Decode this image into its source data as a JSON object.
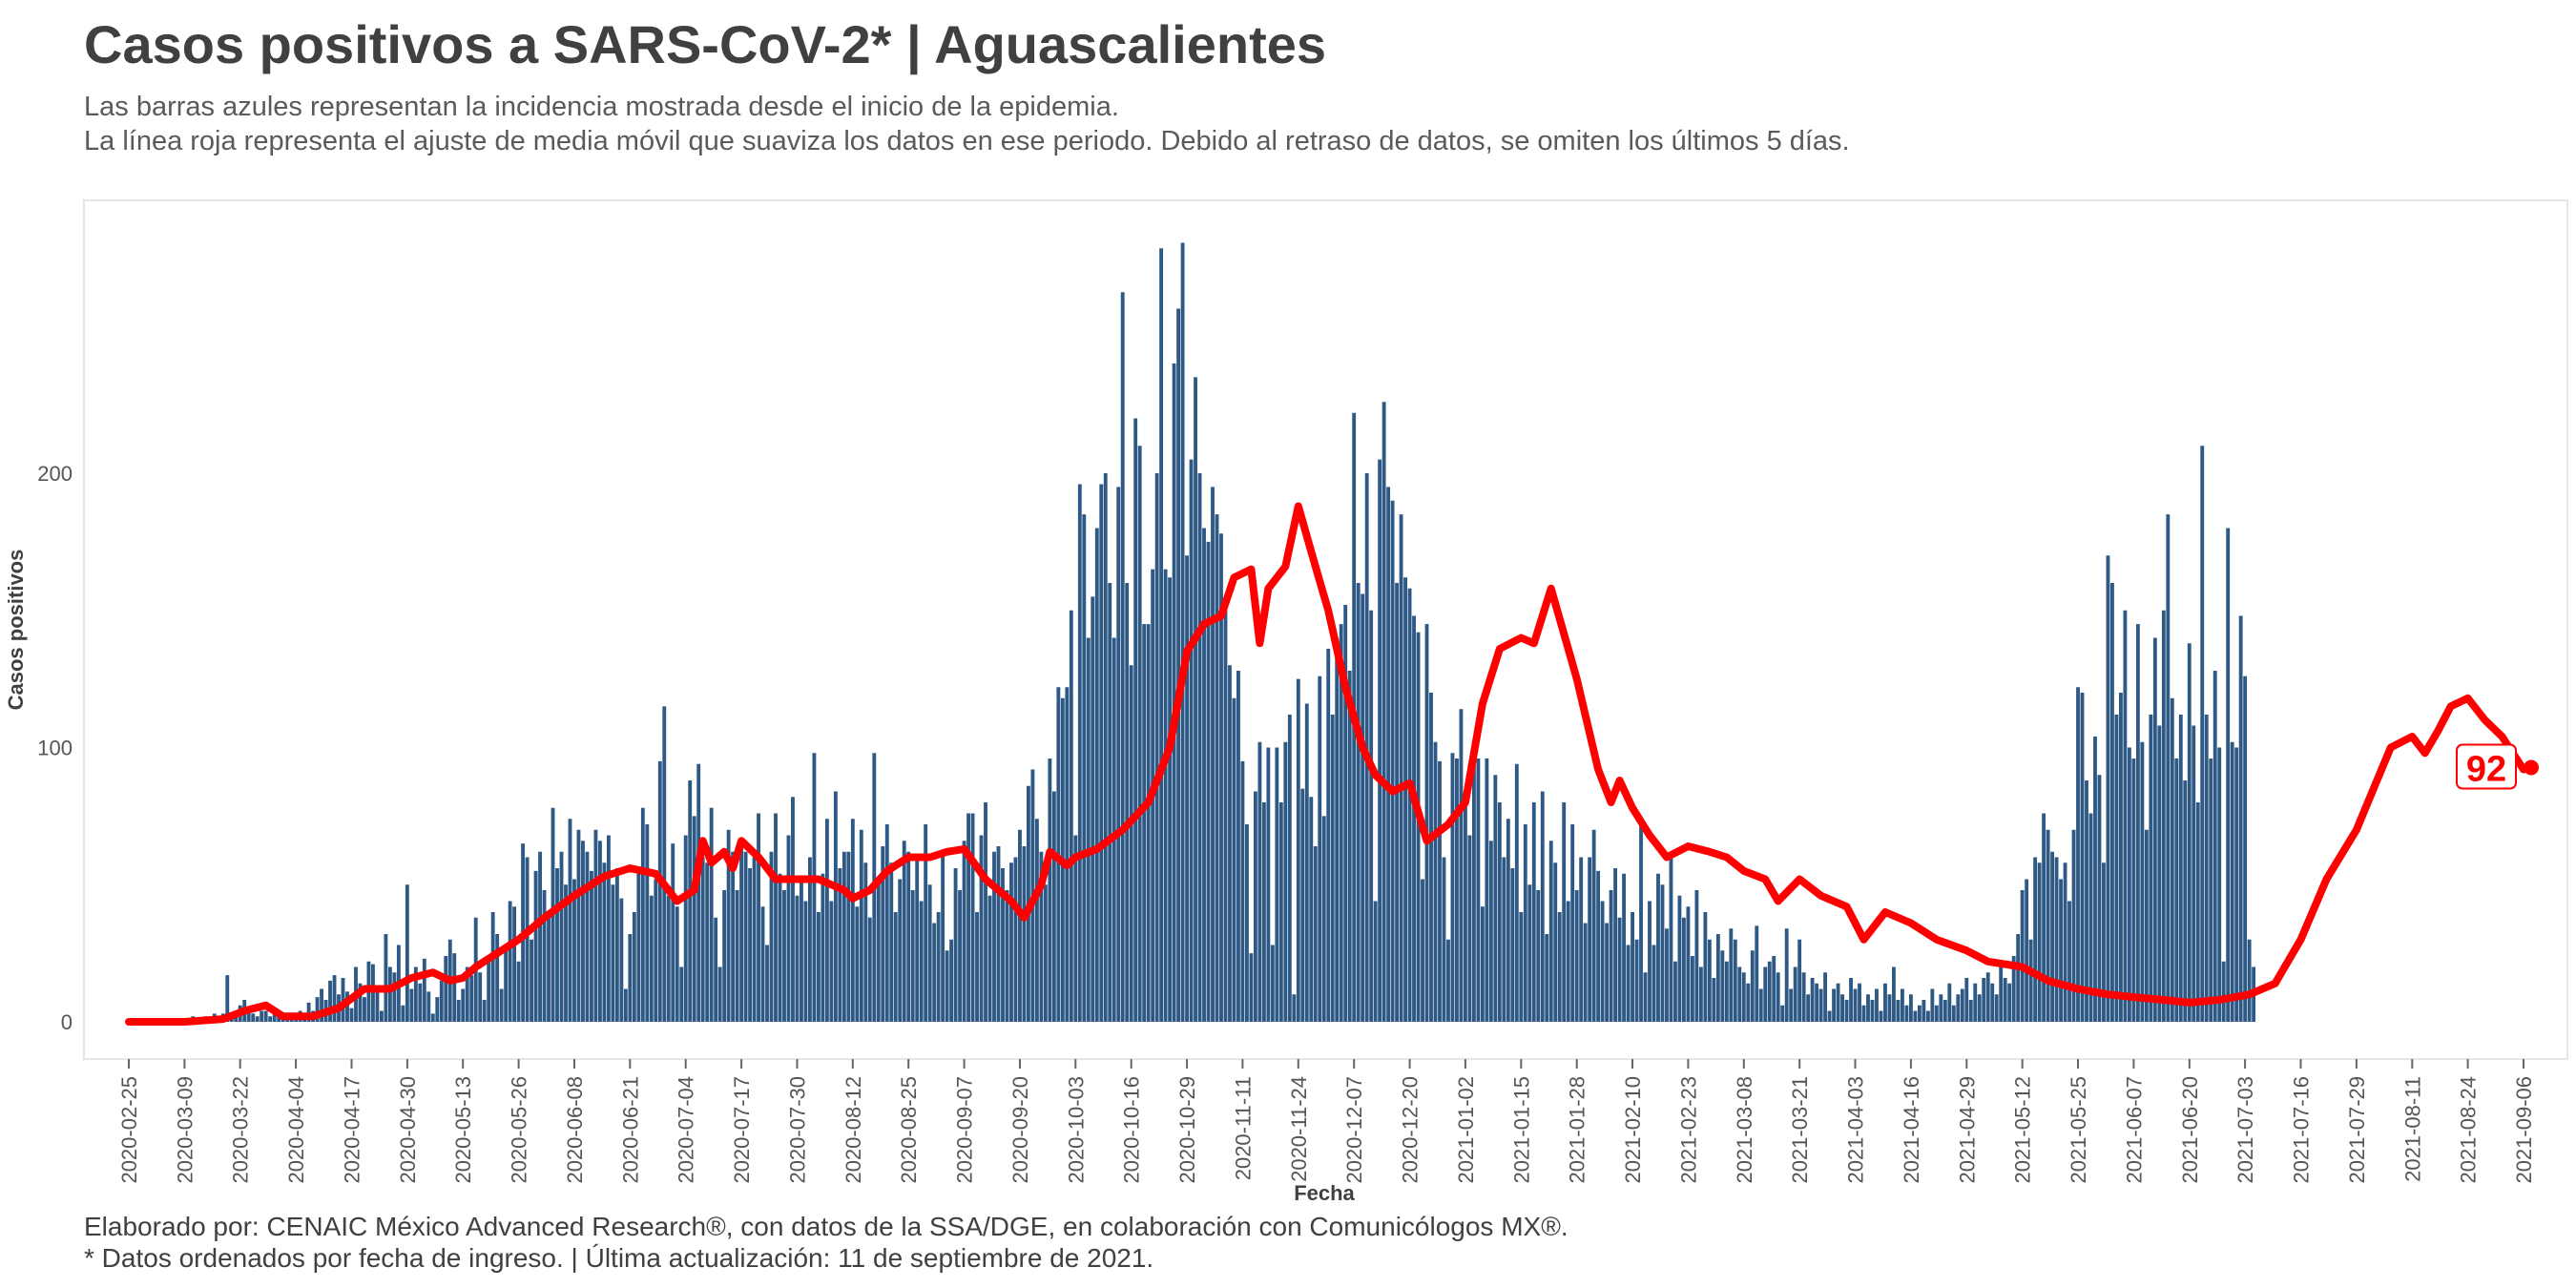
{
  "title": "Casos positivos a SARS-CoV-2* | Aguascalientes",
  "subtitle": [
    "Las barras azules representan la incidencia mostrada desde el inicio de la epidemia.",
    "La línea roja representa el ajuste de media móvil que suaviza los datos en ese periodo. Debido al retraso de datos, se omiten los últimos 5 días."
  ],
  "caption": [
    "Elaborado por: CENAIC México Advanced Research®, con datos de la SSA/DGE, en colaboración con Comunicólogos MX®.",
    "* Datos ordenados por fecha de ingreso. | Última actualización: 11 de septiembre de 2021."
  ],
  "colors": {
    "bars": "#2e5985",
    "line": "#ff0000",
    "text": "#404040"
  },
  "chart_data": {
    "type": "bar",
    "xlabel": "Fecha",
    "ylabel": "Casos positivos",
    "x_start": "2020-02-25",
    "x_end": "2021-09-06",
    "ylim": [
      -14,
      285
    ],
    "yticks": [
      0,
      100,
      200
    ],
    "grid": false,
    "xtick_labels": [
      "2020-02-25",
      "2020-03-09",
      "2020-03-22",
      "2020-04-04",
      "2020-04-17",
      "2020-04-30",
      "2020-05-13",
      "2020-05-26",
      "2020-06-08",
      "2020-06-21",
      "2020-07-04",
      "2020-07-17",
      "2020-07-30",
      "2020-08-12",
      "2020-08-25",
      "2020-09-07",
      "2020-09-20",
      "2020-10-03",
      "2020-10-16",
      "2020-10-29",
      "2020-11-11",
      "2020-11-24",
      "2020-12-07",
      "2020-12-20",
      "2021-01-02",
      "2021-01-15",
      "2021-01-28",
      "2021-02-10",
      "2021-02-23",
      "2021-03-08",
      "2021-03-21",
      "2021-04-03",
      "2021-04-16",
      "2021-04-29",
      "2021-05-12",
      "2021-05-25",
      "2021-06-07",
      "2021-06-20",
      "2021-07-03",
      "2021-07-16",
      "2021-07-29",
      "2021-08-11",
      "2021-08-24",
      "2021-09-06"
    ],
    "series": [
      {
        "kind": "bar",
        "start": "2020-02-25",
        "values": [
          0,
          0,
          0,
          0,
          0,
          0,
          0,
          0,
          0,
          0,
          0,
          0,
          0,
          1,
          0,
          2,
          1,
          0,
          2,
          1,
          3,
          2,
          3,
          17,
          3,
          4,
          6,
          8,
          5,
          3,
          2,
          4,
          4,
          2,
          3,
          2,
          1,
          2,
          3,
          2,
          4,
          2,
          7,
          4,
          9,
          12,
          8,
          15,
          17,
          10,
          16,
          11,
          5,
          20,
          14,
          9,
          22,
          21,
          13,
          4,
          32,
          20,
          18,
          28,
          6,
          50,
          12,
          20,
          14,
          23,
          11,
          3,
          9,
          15,
          24,
          30,
          25,
          8,
          12,
          20,
          17,
          38,
          18,
          8,
          24,
          40,
          32,
          12,
          28,
          44,
          42,
          22,
          65,
          60,
          30,
          55,
          62,
          48,
          40,
          78,
          56,
          62,
          50,
          74,
          52,
          70,
          66,
          62,
          55,
          70,
          66,
          58,
          68,
          50,
          56,
          45,
          12,
          32,
          40,
          56,
          78,
          72,
          46,
          52,
          95,
          115,
          46,
          65,
          42,
          20,
          68,
          88,
          75,
          94,
          60,
          58,
          78,
          38,
          20,
          48,
          70,
          62,
          48,
          64,
          62,
          56,
          60,
          76,
          42,
          28,
          62,
          76,
          54,
          48,
          68,
          82,
          46,
          52,
          44,
          60,
          98,
          40,
          54,
          74,
          44,
          84,
          56,
          62,
          62,
          74,
          42,
          70,
          58,
          38,
          98,
          52,
          64,
          72,
          58,
          40,
          52,
          66,
          62,
          48,
          60,
          44,
          72,
          50,
          36,
          40,
          62,
          26,
          30,
          56,
          48,
          66,
          76,
          76,
          40,
          68,
          80,
          46,
          62,
          64,
          56,
          48,
          58,
          60,
          70,
          64,
          86,
          92,
          74,
          62,
          50,
          96,
          84,
          122,
          118,
          122,
          150,
          68,
          196,
          185,
          140,
          155,
          180,
          196,
          200,
          160,
          140,
          195,
          266,
          160,
          130,
          220,
          210,
          145,
          145,
          165,
          200,
          282,
          165,
          162,
          240,
          260,
          284,
          170,
          205,
          235,
          200,
          180,
          175,
          195,
          185,
          178,
          150,
          130,
          118,
          128,
          95,
          72,
          25,
          84,
          102,
          80,
          100,
          28,
          100,
          80,
          102,
          112,
          10,
          125,
          85,
          116,
          82,
          64,
          126,
          75,
          136,
          112,
          140,
          145,
          152,
          128,
          222,
          160,
          156,
          200,
          150,
          44,
          205,
          226,
          195,
          190,
          160,
          185,
          162,
          158,
          148,
          142,
          52,
          145,
          120,
          102,
          95,
          60,
          30,
          98,
          96,
          114,
          82,
          68,
          94,
          96,
          42,
          96,
          66,
          90,
          80,
          60,
          74,
          56,
          94,
          40,
          72,
          50,
          80,
          48,
          84,
          32,
          66,
          58,
          40,
          80,
          44,
          72,
          48,
          60,
          36,
          60,
          70,
          55,
          44,
          36,
          48,
          56,
          38,
          54,
          28,
          40,
          30,
          72,
          18,
          44,
          28,
          54,
          50,
          34,
          60,
          22,
          46,
          38,
          42,
          24,
          48,
          20,
          40,
          30,
          16,
          32,
          26,
          22,
          34,
          30,
          20,
          18,
          14,
          26,
          35,
          12,
          20,
          22,
          24,
          18,
          6,
          34,
          12,
          20,
          30,
          18,
          10,
          16,
          14,
          12,
          18,
          4,
          12,
          14,
          10,
          8,
          16,
          12,
          14,
          6,
          10,
          8,
          12,
          4,
          14,
          10,
          20,
          8,
          12,
          6,
          10,
          4,
          6,
          8,
          4,
          12,
          6,
          10,
          8,
          14,
          6,
          10,
          12,
          16,
          8,
          14,
          10,
          16,
          18,
          14,
          10,
          20,
          16,
          14,
          24,
          32,
          48,
          52,
          30,
          60,
          58,
          76,
          70,
          62,
          60,
          52,
          58,
          44,
          70,
          122,
          120,
          88,
          76,
          104,
          90,
          58,
          170,
          160,
          112,
          120,
          150,
          100,
          96,
          145,
          102,
          70,
          112,
          140,
          108,
          150,
          185,
          118,
          96,
          112,
          88,
          138,
          108,
          80,
          210,
          112,
          96,
          128,
          100,
          22,
          180,
          102,
          100,
          148,
          126,
          30,
          20
        ]
      },
      {
        "kind": "line",
        "name": "media móvil",
        "points": [
          [
            "2020-02-25",
            0
          ],
          [
            "2020-03-09",
            0
          ],
          [
            "2020-03-18",
            1
          ],
          [
            "2020-03-23",
            4
          ],
          [
            "2020-03-28",
            6
          ],
          [
            "2020-04-01",
            2
          ],
          [
            "2020-04-08",
            2
          ],
          [
            "2020-04-14",
            5
          ],
          [
            "2020-04-20",
            12
          ],
          [
            "2020-04-26",
            12
          ],
          [
            "2020-05-01",
            16
          ],
          [
            "2020-05-06",
            18
          ],
          [
            "2020-05-10",
            15
          ],
          [
            "2020-05-13",
            16
          ],
          [
            "2020-05-16",
            20
          ],
          [
            "2020-05-21",
            25
          ],
          [
            "2020-05-26",
            30
          ],
          [
            "2020-06-01",
            38
          ],
          [
            "2020-06-08",
            46
          ],
          [
            "2020-06-15",
            53
          ],
          [
            "2020-06-21",
            56
          ],
          [
            "2020-06-27",
            54
          ],
          [
            "2020-07-02",
            44
          ],
          [
            "2020-07-06",
            48
          ],
          [
            "2020-07-08",
            66
          ],
          [
            "2020-07-10",
            58
          ],
          [
            "2020-07-13",
            62
          ],
          [
            "2020-07-15",
            56
          ],
          [
            "2020-07-17",
            66
          ],
          [
            "2020-07-21",
            60
          ],
          [
            "2020-07-25",
            52
          ],
          [
            "2020-07-30",
            52
          ],
          [
            "2020-08-04",
            52
          ],
          [
            "2020-08-10",
            48
          ],
          [
            "2020-08-12",
            45
          ],
          [
            "2020-08-16",
            48
          ],
          [
            "2020-08-20",
            55
          ],
          [
            "2020-08-25",
            60
          ],
          [
            "2020-08-30",
            60
          ],
          [
            "2020-09-03",
            62
          ],
          [
            "2020-09-07",
            63
          ],
          [
            "2020-09-12",
            52
          ],
          [
            "2020-09-18",
            44
          ],
          [
            "2020-09-21",
            38
          ],
          [
            "2020-09-25",
            50
          ],
          [
            "2020-09-27",
            62
          ],
          [
            "2020-10-01",
            57
          ],
          [
            "2020-10-03",
            60
          ],
          [
            "2020-10-08",
            63
          ],
          [
            "2020-10-14",
            70
          ],
          [
            "2020-10-20",
            80
          ],
          [
            "2020-10-25",
            100
          ],
          [
            "2020-10-29",
            135
          ],
          [
            "2020-11-02",
            145
          ],
          [
            "2020-11-06",
            148
          ],
          [
            "2020-11-09",
            162
          ],
          [
            "2020-11-13",
            165
          ],
          [
            "2020-11-15",
            138
          ],
          [
            "2020-11-17",
            158
          ],
          [
            "2020-11-21",
            166
          ],
          [
            "2020-11-24",
            188
          ],
          [
            "2020-11-28",
            166
          ],
          [
            "2020-12-01",
            150
          ],
          [
            "2020-12-05",
            122
          ],
          [
            "2020-12-09",
            100
          ],
          [
            "2020-12-12",
            90
          ],
          [
            "2020-12-16",
            84
          ],
          [
            "2020-12-20",
            87
          ],
          [
            "2020-12-24",
            66
          ],
          [
            "2020-12-29",
            72
          ],
          [
            "2021-01-02",
            80
          ],
          [
            "2021-01-06",
            116
          ],
          [
            "2021-01-10",
            136
          ],
          [
            "2021-01-15",
            140
          ],
          [
            "2021-01-18",
            138
          ],
          [
            "2021-01-22",
            158
          ],
          [
            "2021-01-28",
            125
          ],
          [
            "2021-02-02",
            92
          ],
          [
            "2021-02-05",
            80
          ],
          [
            "2021-02-07",
            88
          ],
          [
            "2021-02-10",
            78
          ],
          [
            "2021-02-14",
            68
          ],
          [
            "2021-02-18",
            60
          ],
          [
            "2021-02-23",
            64
          ],
          [
            "2021-02-28",
            62
          ],
          [
            "2021-03-04",
            60
          ],
          [
            "2021-03-08",
            55
          ],
          [
            "2021-03-13",
            52
          ],
          [
            "2021-03-16",
            44
          ],
          [
            "2021-03-21",
            52
          ],
          [
            "2021-03-26",
            46
          ],
          [
            "2021-04-01",
            42
          ],
          [
            "2021-04-05",
            30
          ],
          [
            "2021-04-10",
            40
          ],
          [
            "2021-04-16",
            36
          ],
          [
            "2021-04-22",
            30
          ],
          [
            "2021-04-29",
            26
          ],
          [
            "2021-05-04",
            22
          ],
          [
            "2021-05-12",
            20
          ],
          [
            "2021-05-18",
            15
          ],
          [
            "2021-05-25",
            12
          ],
          [
            "2021-06-01",
            10
          ],
          [
            "2021-06-07",
            9
          ],
          [
            "2021-06-14",
            8
          ],
          [
            "2021-06-20",
            7
          ],
          [
            "2021-06-27",
            8
          ],
          [
            "2021-07-04",
            10
          ],
          [
            "2021-07-10",
            14
          ],
          [
            "2021-07-16",
            30
          ],
          [
            "2021-07-22",
            52
          ],
          [
            "2021-07-29",
            70
          ],
          [
            "2021-08-02",
            85
          ],
          [
            "2021-08-06",
            100
          ],
          [
            "2021-08-11",
            104
          ],
          [
            "2021-08-14",
            98
          ],
          [
            "2021-08-17",
            106
          ],
          [
            "2021-08-20",
            115
          ],
          [
            "2021-08-24",
            118
          ],
          [
            "2021-08-28",
            110
          ],
          [
            "2021-09-01",
            104
          ],
          [
            "2021-09-06",
            92
          ]
        ],
        "end_label": "92"
      }
    ]
  }
}
